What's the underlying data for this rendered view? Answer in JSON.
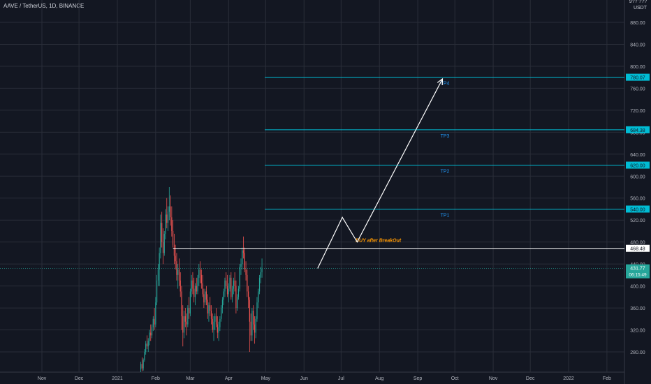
{
  "header": {
    "symbol_title": "AAVE / TetherUS, 1D, BINANCE",
    "axis_top_clipped": "9?? ???",
    "currency": "USDT"
  },
  "colors": {
    "background": "#131722",
    "grid": "#2a2e39",
    "axis_text": "#b2b5be",
    "up_candle": "#26a69a",
    "down_candle": "#ef5350",
    "tp_line": "#00bcd4",
    "tp_label": "#2196f3",
    "white": "#ffffff",
    "annotation": "#ff9800"
  },
  "chart_data": {
    "type": "candlestick",
    "title": "AAVE / TetherUS, 1D, BINANCE",
    "y_unit": "USDT",
    "ylim": [
      250,
      975
    ],
    "y_ticks": [
      280,
      320,
      360,
      400,
      440,
      480,
      520,
      560,
      600,
      640,
      680,
      720,
      760,
      800,
      840,
      880
    ],
    "y_tick_labels": [
      "280.00",
      "320.00",
      "360.00",
      "400.00",
      "440.00",
      "480.00",
      "520.00",
      "560.00",
      "600.00",
      "640.00",
      "680.00",
      "720.00",
      "760.00",
      "800.00",
      "840.00",
      "880.00"
    ],
    "x_ticks": [
      {
        "date": "2020-11-01",
        "label": "Nov"
      },
      {
        "date": "2020-12-01",
        "label": "Dec"
      },
      {
        "date": "2021-01-01",
        "label": "2021"
      },
      {
        "date": "2021-02-01",
        "label": "Feb"
      },
      {
        "date": "2021-03-01",
        "label": "Mar"
      },
      {
        "date": "2021-04-01",
        "label": "Apr"
      },
      {
        "date": "2021-05-01",
        "label": "May"
      },
      {
        "date": "2021-06-01",
        "label": "Jun"
      },
      {
        "date": "2021-07-01",
        "label": "Jul"
      },
      {
        "date": "2021-08-01",
        "label": "Aug"
      },
      {
        "date": "2021-09-01",
        "label": "Sep"
      },
      {
        "date": "2021-10-01",
        "label": "Oct"
      },
      {
        "date": "2021-11-01",
        "label": "Nov"
      },
      {
        "date": "2021-12-01",
        "label": "Dec"
      },
      {
        "date": "2022-01-01",
        "label": "2022"
      },
      {
        "date": "2022-02-01",
        "label": "Feb"
      }
    ],
    "grid": true,
    "ohlc_columns": [
      "date",
      "open",
      "high",
      "low",
      "close"
    ],
    "ohlc": [
      [
        "2021-01-20",
        248,
        262,
        240,
        258
      ],
      [
        "2021-01-21",
        258,
        270,
        245,
        250
      ],
      [
        "2021-01-22",
        250,
        268,
        246,
        265
      ],
      [
        "2021-01-23",
        265,
        285,
        262,
        280
      ],
      [
        "2021-01-24",
        280,
        300,
        275,
        295
      ],
      [
        "2021-01-25",
        295,
        310,
        285,
        290
      ],
      [
        "2021-01-26",
        290,
        305,
        280,
        300
      ],
      [
        "2021-01-27",
        300,
        320,
        292,
        315
      ],
      [
        "2021-01-28",
        315,
        330,
        300,
        310
      ],
      [
        "2021-01-29",
        310,
        330,
        305,
        325
      ],
      [
        "2021-01-30",
        325,
        345,
        318,
        340
      ],
      [
        "2021-01-31",
        340,
        360,
        320,
        330
      ],
      [
        "2021-02-01",
        330,
        380,
        325,
        370
      ],
      [
        "2021-02-02",
        370,
        420,
        365,
        410
      ],
      [
        "2021-02-03",
        410,
        440,
        400,
        430
      ],
      [
        "2021-02-04",
        430,
        470,
        400,
        460
      ],
      [
        "2021-02-05",
        460,
        530,
        450,
        515
      ],
      [
        "2021-02-06",
        515,
        535,
        470,
        480
      ],
      [
        "2021-02-07",
        480,
        505,
        440,
        460
      ],
      [
        "2021-02-08",
        460,
        500,
        455,
        495
      ],
      [
        "2021-02-09",
        495,
        540,
        485,
        530
      ],
      [
        "2021-02-10",
        530,
        560,
        505,
        515
      ],
      [
        "2021-02-11",
        515,
        545,
        500,
        535
      ],
      [
        "2021-02-12",
        535,
        580,
        520,
        545
      ],
      [
        "2021-02-13",
        545,
        565,
        510,
        525
      ],
      [
        "2021-02-14",
        525,
        545,
        490,
        500
      ],
      [
        "2021-02-15",
        500,
        520,
        470,
        475
      ],
      [
        "2021-02-16",
        475,
        495,
        440,
        455
      ],
      [
        "2021-02-17",
        455,
        475,
        430,
        445
      ],
      [
        "2021-02-18",
        445,
        460,
        410,
        420
      ],
      [
        "2021-02-19",
        420,
        440,
        395,
        430
      ],
      [
        "2021-02-20",
        430,
        450,
        400,
        410
      ],
      [
        "2021-02-21",
        410,
        425,
        380,
        390
      ],
      [
        "2021-02-22",
        390,
        400,
        320,
        345
      ],
      [
        "2021-02-23",
        345,
        365,
        290,
        315
      ],
      [
        "2021-02-24",
        315,
        355,
        305,
        345
      ],
      [
        "2021-02-25",
        345,
        360,
        325,
        335
      ],
      [
        "2021-02-26",
        335,
        350,
        310,
        330
      ],
      [
        "2021-02-27",
        330,
        365,
        325,
        360
      ],
      [
        "2021-02-28",
        360,
        380,
        340,
        350
      ],
      [
        "2021-03-01",
        350,
        395,
        345,
        390
      ],
      [
        "2021-03-02",
        390,
        420,
        380,
        410
      ],
      [
        "2021-03-03",
        410,
        425,
        385,
        395
      ],
      [
        "2021-03-04",
        395,
        415,
        370,
        380
      ],
      [
        "2021-03-05",
        380,
        405,
        365,
        400
      ],
      [
        "2021-03-06",
        400,
        415,
        385,
        390
      ],
      [
        "2021-03-07",
        390,
        420,
        385,
        415
      ],
      [
        "2021-03-08",
        415,
        440,
        400,
        430
      ],
      [
        "2021-03-09",
        430,
        445,
        405,
        420
      ],
      [
        "2021-03-10",
        420,
        430,
        395,
        405
      ],
      [
        "2021-03-11",
        405,
        420,
        380,
        385
      ],
      [
        "2021-03-12",
        385,
        395,
        360,
        370
      ],
      [
        "2021-03-13",
        370,
        395,
        365,
        390
      ],
      [
        "2021-03-14",
        390,
        400,
        365,
        375
      ],
      [
        "2021-03-15",
        375,
        385,
        340,
        350
      ],
      [
        "2021-03-16",
        350,
        370,
        335,
        365
      ],
      [
        "2021-03-17",
        365,
        380,
        345,
        355
      ],
      [
        "2021-03-18",
        355,
        365,
        330,
        340
      ],
      [
        "2021-03-19",
        340,
        350,
        315,
        320
      ],
      [
        "2021-03-20",
        320,
        345,
        300,
        335
      ],
      [
        "2021-03-21",
        335,
        350,
        320,
        345
      ],
      [
        "2021-03-22",
        345,
        360,
        325,
        330
      ],
      [
        "2021-03-23",
        330,
        345,
        305,
        315
      ],
      [
        "2021-03-24",
        315,
        335,
        300,
        325
      ],
      [
        "2021-03-25",
        325,
        345,
        318,
        340
      ],
      [
        "2021-03-26",
        340,
        365,
        335,
        360
      ],
      [
        "2021-03-27",
        360,
        380,
        350,
        375
      ],
      [
        "2021-03-28",
        375,
        395,
        365,
        390
      ],
      [
        "2021-03-29",
        390,
        415,
        380,
        410
      ],
      [
        "2021-03-30",
        410,
        425,
        395,
        400
      ],
      [
        "2021-03-31",
        400,
        420,
        380,
        385
      ],
      [
        "2021-04-01",
        385,
        405,
        370,
        395
      ],
      [
        "2021-04-02",
        395,
        420,
        390,
        415
      ],
      [
        "2021-04-03",
        415,
        425,
        375,
        380
      ],
      [
        "2021-04-04",
        380,
        400,
        370,
        395
      ],
      [
        "2021-04-05",
        395,
        415,
        385,
        410
      ],
      [
        "2021-04-06",
        410,
        425,
        390,
        400
      ],
      [
        "2021-04-07",
        400,
        410,
        350,
        360
      ],
      [
        "2021-04-08",
        360,
        385,
        355,
        380
      ],
      [
        "2021-04-09",
        380,
        400,
        375,
        395
      ],
      [
        "2021-04-10",
        395,
        440,
        390,
        435
      ],
      [
        "2021-04-11",
        435,
        450,
        420,
        440
      ],
      [
        "2021-04-12",
        440,
        470,
        430,
        465
      ],
      [
        "2021-04-13",
        465,
        490,
        450,
        460
      ],
      [
        "2021-04-14",
        460,
        470,
        425,
        430
      ],
      [
        "2021-04-15",
        430,
        445,
        410,
        420
      ],
      [
        "2021-04-16",
        420,
        430,
        380,
        390
      ],
      [
        "2021-04-17",
        390,
        400,
        360,
        375
      ],
      [
        "2021-04-18",
        375,
        380,
        280,
        335
      ],
      [
        "2021-04-19",
        335,
        350,
        300,
        310
      ],
      [
        "2021-04-20",
        310,
        360,
        300,
        355
      ],
      [
        "2021-04-21",
        355,
        365,
        320,
        330
      ],
      [
        "2021-04-22",
        330,
        345,
        295,
        315
      ],
      [
        "2021-04-23",
        315,
        345,
        305,
        340
      ],
      [
        "2021-04-24",
        340,
        380,
        335,
        370
      ],
      [
        "2021-04-25",
        370,
        395,
        360,
        390
      ],
      [
        "2021-04-26",
        390,
        420,
        385,
        415
      ],
      [
        "2021-04-27",
        415,
        435,
        405,
        425
      ],
      [
        "2021-04-28",
        425,
        450,
        415,
        431.77
      ]
    ],
    "annotations": {
      "breakout_line": {
        "price": 468.48,
        "label": "468.48",
        "start_date": "2021-02-15",
        "text": "BUY after BreakOut"
      },
      "targets": [
        {
          "name": "TP1",
          "price": 540.0,
          "label": "540.00"
        },
        {
          "name": "TP2",
          "price": 620.0,
          "label": "620.00"
        },
        {
          "name": "TP3",
          "price": 684.38,
          "label": "684.38"
        },
        {
          "name": "TP4",
          "price": 780.07,
          "label": "780.07"
        }
      ],
      "projection_path": [
        {
          "date": "2021-06-12",
          "price": 432
        },
        {
          "date": "2021-07-02",
          "price": 525
        },
        {
          "date": "2021-07-14",
          "price": 480
        },
        {
          "date": "2021-09-21",
          "price": 777
        }
      ],
      "last_price": {
        "price": 431.77,
        "label": "431.77",
        "countdown": "06:15:49"
      }
    }
  }
}
